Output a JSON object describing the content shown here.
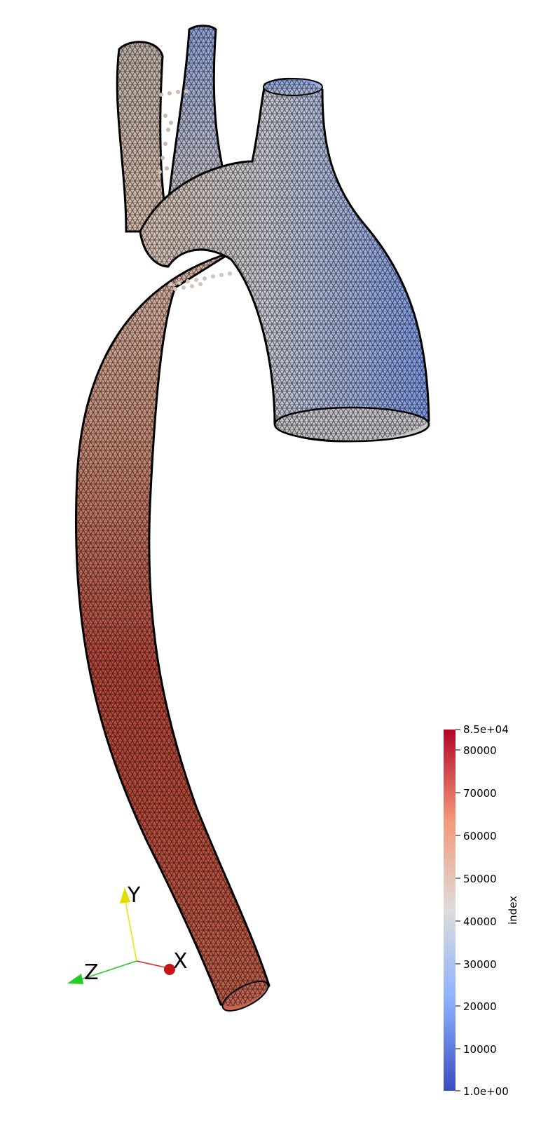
{
  "colorbar": {
    "title": "index",
    "max_label": "8.5e+04",
    "min_label": "1.0e+00",
    "ticks": [
      "80000",
      "70000",
      "60000",
      "50000",
      "40000",
      "30000",
      "20000",
      "10000"
    ],
    "colormap": {
      "high": "#b40426",
      "mid_high": "#f4987a",
      "mid": "#dddcdc",
      "mid_low": "#8db0fe",
      "low": "#3b4cc0"
    }
  },
  "axes_triad": {
    "x_label": "X",
    "y_label": "Y",
    "z_label": "Z",
    "x_color": "#d62728",
    "y_color": "#e6e600",
    "z_color": "#22cc22"
  },
  "mesh": {
    "wire_color": "#000000"
  }
}
